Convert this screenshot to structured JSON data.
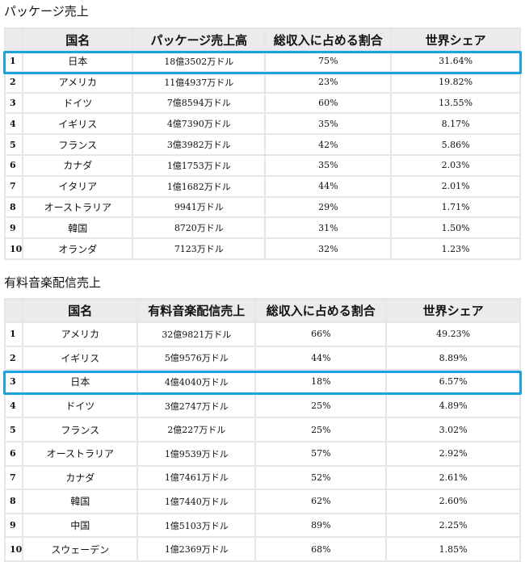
{
  "package_section": {
    "title": "パッケージ売上",
    "headers": [
      "",
      "国名",
      "パッケージ売上高",
      "総収入に占める割合",
      "世界シェア"
    ],
    "rows": [
      {
        "rank": "1",
        "country": "日本",
        "sales": "18億3502万ドル",
        "share_of_revenue": "75%",
        "world_share": "31.64%"
      },
      {
        "rank": "2",
        "country": "アメリカ",
        "sales": "11億4937万ドル",
        "share_of_revenue": "23%",
        "world_share": "19.82%"
      },
      {
        "rank": "3",
        "country": "ドイツ",
        "sales": "7億8594万ドル",
        "share_of_revenue": "60%",
        "world_share": "13.55%"
      },
      {
        "rank": "4",
        "country": "イギリス",
        "sales": "4億7390万ドル",
        "share_of_revenue": "35%",
        "world_share": "8.17%"
      },
      {
        "rank": "5",
        "country": "フランス",
        "sales": "3億3982万ドル",
        "share_of_revenue": "42%",
        "world_share": "5.86%"
      },
      {
        "rank": "6",
        "country": "カナダ",
        "sales": "1億1753万ドル",
        "share_of_revenue": "35%",
        "world_share": "2.03%"
      },
      {
        "rank": "7",
        "country": "イタリア",
        "sales": "1億1682万ドル",
        "share_of_revenue": "44%",
        "world_share": "2.01%"
      },
      {
        "rank": "8",
        "country": "オーストラリア",
        "sales": "9941万ドル",
        "share_of_revenue": "29%",
        "world_share": "1.71%"
      },
      {
        "rank": "9",
        "country": "韓国",
        "sales": "8720万ドル",
        "share_of_revenue": "31%",
        "world_share": "1.50%"
      },
      {
        "rank": "10",
        "country": "オランダ",
        "sales": "7123万ドル",
        "share_of_revenue": "32%",
        "world_share": "1.23%"
      }
    ]
  },
  "streaming_section": {
    "title": "有料音楽配信売上",
    "headers": [
      "",
      "国名",
      "有料音楽配信売上",
      "総収入に占める割合",
      "世界シェア"
    ],
    "rows": [
      {
        "rank": "1",
        "country": "アメリカ",
        "sales": "32億9821万ドル",
        "share_of_revenue": "66%",
        "world_share": "49.23%"
      },
      {
        "rank": "2",
        "country": "イギリス",
        "sales": "5億9576万ドル",
        "share_of_revenue": "44%",
        "world_share": "8.89%"
      },
      {
        "rank": "3",
        "country": "日本",
        "sales": "4億4040万ドル",
        "share_of_revenue": "18%",
        "world_share": "6.57%"
      },
      {
        "rank": "4",
        "country": "ドイツ",
        "sales": "3億2747万ドル",
        "share_of_revenue": "25%",
        "world_share": "4.89%"
      },
      {
        "rank": "5",
        "country": "フランス",
        "sales": "2億227万ドル",
        "share_of_revenue": "25%",
        "world_share": "3.02%"
      },
      {
        "rank": "6",
        "country": "オーストラリア",
        "sales": "1億9539万ドル",
        "share_of_revenue": "57%",
        "world_share": "2.92%"
      },
      {
        "rank": "7",
        "country": "カナダ",
        "sales": "1億7461万ドル",
        "share_of_revenue": "52%",
        "world_share": "2.61%"
      },
      {
        "rank": "8",
        "country": "韓国",
        "sales": "1億7440万ドル",
        "share_of_revenue": "62%",
        "world_share": "2.60%"
      },
      {
        "rank": "9",
        "country": "中国",
        "sales": "1億5103万ドル",
        "share_of_revenue": "89%",
        "world_share": "2.25%"
      },
      {
        "rank": "10",
        "country": "スウェーデン",
        "sales": "1億2369万ドル",
        "share_of_revenue": "68%",
        "world_share": "1.85%"
      }
    ]
  },
  "highlight_color": "#1aa3de"
}
